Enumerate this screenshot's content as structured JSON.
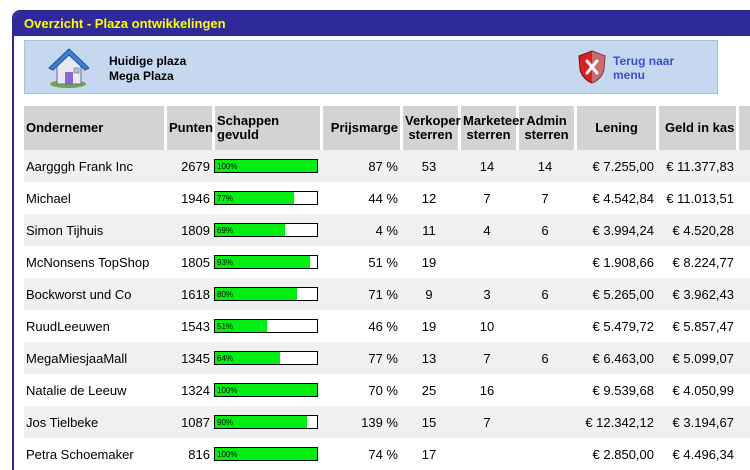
{
  "title": "Overzicht - Plaza ontwikkelingen",
  "plaza": {
    "label": "Huidige plaza",
    "name": "Mega Plaza"
  },
  "back_link": {
    "line1": "Terug naar",
    "line2": "menu"
  },
  "columns": {
    "ondernemer": "Ondernemer",
    "punten": "Punten",
    "schappen_1": "Schappen",
    "schappen_2": "gevuld",
    "prijsmarge": "Prijsmarge",
    "verkoper_1": "Verkoper",
    "verkoper_2": "sterren",
    "marketeer_1": "Marketeer",
    "marketeer_2": "sterren",
    "admin_1": "Admin",
    "admin_2": "sterren",
    "lening": "Lening",
    "geld": "Geld in kas"
  },
  "colors": {
    "title_bg": "#2e2a9a",
    "title_text": "#ffff00",
    "bar_fill": "#00ee11",
    "panel_bg": "#c6d8f0",
    "link": "#3b4fc8"
  },
  "icons": {
    "home": "home-icon",
    "back": "shield-x-icon"
  },
  "rows": [
    {
      "name": "Aargggh Frank Inc",
      "punten": "2679",
      "fill_pct": 100,
      "fill_label": "100%",
      "marge": "87 %",
      "verkoper": "53",
      "marketeer": "14",
      "admin": "14",
      "lening": "€ 7.255,00",
      "kas": "€ 11.377,83"
    },
    {
      "name": "Michael",
      "punten": "1946",
      "fill_pct": 77,
      "fill_label": "77%",
      "marge": "44 %",
      "verkoper": "12",
      "marketeer": "7",
      "admin": "7",
      "lening": "€ 4.542,84",
      "kas": "€ 11.013,51"
    },
    {
      "name": "Simon Tijhuis",
      "punten": "1809",
      "fill_pct": 69,
      "fill_label": "69%",
      "marge": "4 %",
      "verkoper": "11",
      "marketeer": "4",
      "admin": "6",
      "lening": "€ 3.994,24",
      "kas": "€ 4.520,28"
    },
    {
      "name": "McNonsens TopShop",
      "punten": "1805",
      "fill_pct": 93,
      "fill_label": "93%",
      "marge": "51 %",
      "verkoper": "19",
      "marketeer": "",
      "admin": "",
      "lening": "€ 1.908,66",
      "kas": "€ 8.224,77"
    },
    {
      "name": "Bockworst und Co",
      "punten": "1618",
      "fill_pct": 80,
      "fill_label": "80%",
      "marge": "71 %",
      "verkoper": "9",
      "marketeer": "3",
      "admin": "6",
      "lening": "€ 5.265,00",
      "kas": "€ 3.962,43"
    },
    {
      "name": "RuudLeeuwen",
      "punten": "1543",
      "fill_pct": 51,
      "fill_label": "51%",
      "marge": "46 %",
      "verkoper": "19",
      "marketeer": "10",
      "admin": "",
      "lening": "€ 5.479,72",
      "kas": "€ 5.857,47"
    },
    {
      "name": "MegaMiesjaaMall",
      "punten": "1345",
      "fill_pct": 64,
      "fill_label": "64%",
      "marge": "77 %",
      "verkoper": "13",
      "marketeer": "7",
      "admin": "6",
      "lening": "€ 6.463,00",
      "kas": "€ 5.099,07"
    },
    {
      "name": "Natalie de Leeuw",
      "punten": "1324",
      "fill_pct": 100,
      "fill_label": "100%",
      "marge": "70 %",
      "verkoper": "25",
      "marketeer": "16",
      "admin": "",
      "lening": "€ 9.539,68",
      "kas": "€ 4.050,99"
    },
    {
      "name": "Jos Tielbeke",
      "punten": "1087",
      "fill_pct": 90,
      "fill_label": "90%",
      "marge": "139 %",
      "verkoper": "15",
      "marketeer": "7",
      "admin": "",
      "lening": "€ 12.342,12",
      "kas": "€ 3.194,67"
    },
    {
      "name": "Petra Schoemaker",
      "punten": "816",
      "fill_pct": 100,
      "fill_label": "100%",
      "marge": "74 %",
      "verkoper": "17",
      "marketeer": "",
      "admin": "",
      "lening": "€ 2.850,00",
      "kas": "€ 4.496,34"
    }
  ]
}
